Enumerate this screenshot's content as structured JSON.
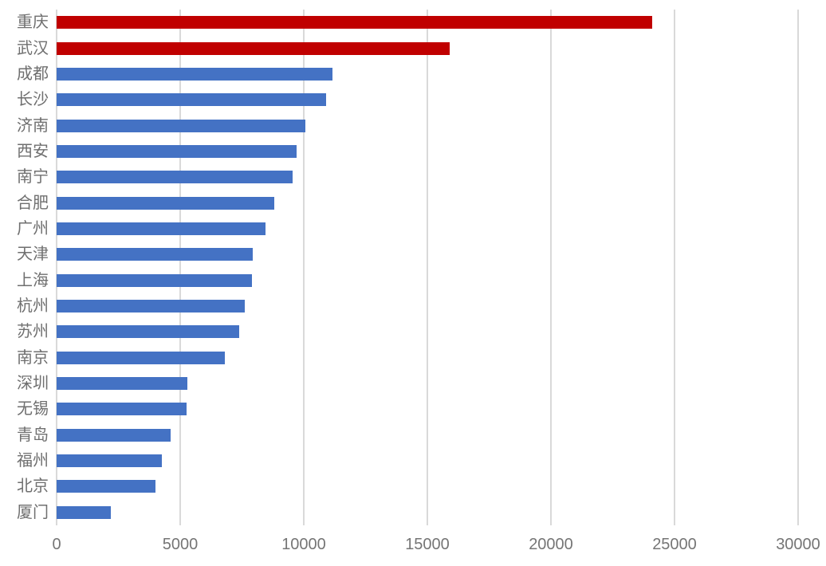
{
  "chart_data": {
    "type": "bar",
    "orientation": "horizontal",
    "title": "",
    "xlabel": "",
    "ylabel": "",
    "categories": [
      "重庆",
      "武汉",
      "成都",
      "长沙",
      "济南",
      "西安",
      "南宁",
      "合肥",
      "广州",
      "天津",
      "上海",
      "杭州",
      "苏州",
      "南京",
      "深圳",
      "无锡",
      "青岛",
      "福州",
      "北京",
      "厦门"
    ],
    "values": [
      24100,
      15900,
      11150,
      10900,
      10050,
      9700,
      9550,
      8800,
      8450,
      7950,
      7900,
      7600,
      7400,
      6800,
      5300,
      5250,
      4600,
      4250,
      4000,
      2200
    ],
    "bar_colors": [
      "#c00000",
      "#c00000",
      "#4472c4",
      "#4472c4",
      "#4472c4",
      "#4472c4",
      "#4472c4",
      "#4472c4",
      "#4472c4",
      "#4472c4",
      "#4472c4",
      "#4472c4",
      "#4472c4",
      "#4472c4",
      "#4472c4",
      "#4472c4",
      "#4472c4",
      "#4472c4",
      "#4472c4",
      "#4472c4"
    ],
    "xlim": [
      0,
      30000
    ],
    "xticks": [
      0,
      5000,
      10000,
      15000,
      20000,
      25000,
      30000
    ],
    "xtick_labels": [
      "0",
      "5000",
      "10000",
      "15000",
      "20000",
      "25000",
      "30000"
    ],
    "grid": "vertical",
    "legend": "none",
    "colors": {
      "highlight": "#c00000",
      "default_bar": "#4472c4",
      "gridline": "#d9d9d9",
      "axis_text": "#757575",
      "background": "#ffffff"
    }
  }
}
